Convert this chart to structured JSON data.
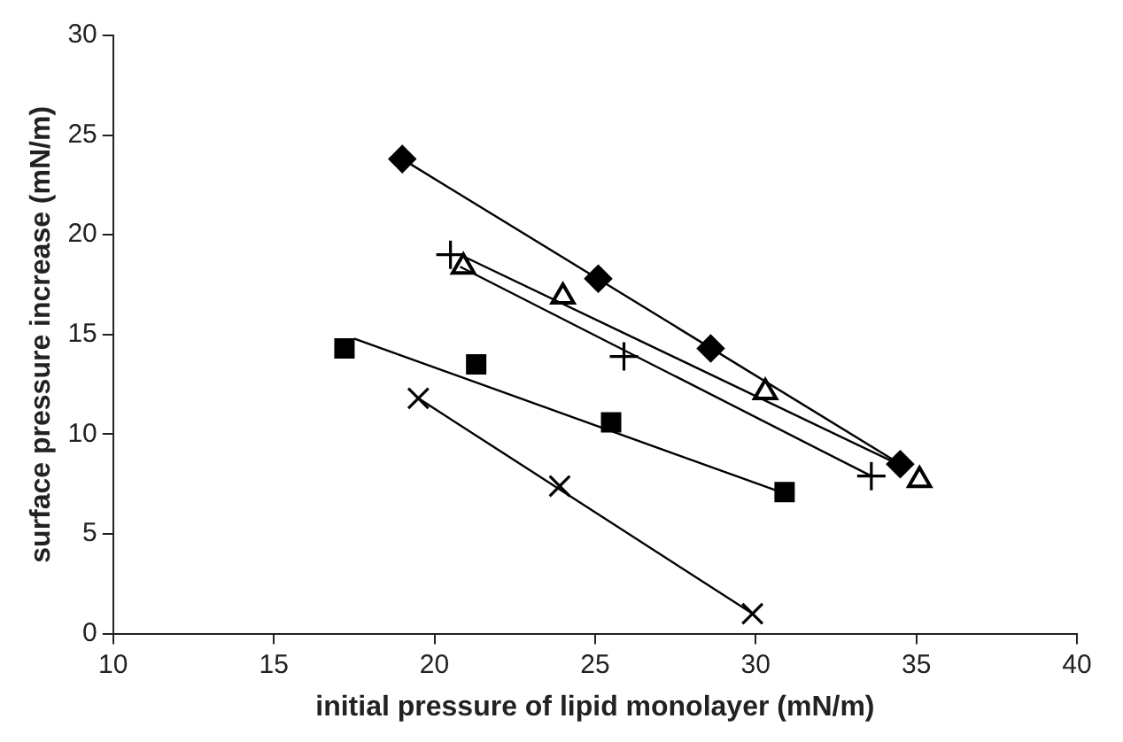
{
  "chart_data": {
    "type": "scatter",
    "xlabel": "initial pressure of lipid monolayer (mN/m)",
    "ylabel": "surface pressure increase (mN/m)",
    "xlim": [
      10,
      40
    ],
    "xticks": [
      10,
      15,
      20,
      25,
      30,
      35,
      40
    ],
    "ylim": [
      0,
      30
    ],
    "yticks": [
      0,
      5,
      10,
      15,
      20,
      25,
      30
    ],
    "grid": false,
    "legend": false,
    "series": [
      {
        "marker": "diamond",
        "color": "#000000",
        "x": [
          19.0,
          25.1,
          28.6,
          34.5
        ],
        "values": [
          23.8,
          17.8,
          14.3,
          8.5
        ]
      },
      {
        "marker": "triangle",
        "color": "#000000",
        "x": [
          20.9,
          24.0,
          30.3,
          35.1
        ],
        "values": [
          18.4,
          16.9,
          12.1,
          7.7
        ]
      },
      {
        "marker": "plus",
        "color": "#000000",
        "x": [
          20.5,
          25.9,
          33.6
        ],
        "values": [
          19.0,
          13.9,
          7.9
        ]
      },
      {
        "marker": "square",
        "color": "#000000",
        "x": [
          17.2,
          21.3,
          25.5,
          30.9
        ],
        "values": [
          14.3,
          13.5,
          10.6,
          7.1
        ]
      },
      {
        "marker": "cross",
        "color": "#000000",
        "x": [
          19.5,
          23.9,
          29.9
        ],
        "values": [
          11.8,
          7.4,
          1.0
        ]
      },
      {
        "type": "line",
        "marker": "none",
        "color": "#000000",
        "x": [
          19.0,
          34.5
        ],
        "values": [
          23.8,
          8.5
        ]
      },
      {
        "type": "line",
        "marker": "none",
        "color": "#000000",
        "x": [
          20.8,
          34.3
        ],
        "values": [
          19.0,
          8.6
        ]
      },
      {
        "type": "line",
        "marker": "none",
        "color": "#000000",
        "x": [
          20.8,
          33.6
        ],
        "values": [
          18.4,
          7.9
        ]
      },
      {
        "type": "line",
        "marker": "none",
        "color": "#000000",
        "x": [
          17.5,
          30.6
        ],
        "values": [
          14.8,
          7.2
        ]
      },
      {
        "type": "line",
        "marker": "none",
        "color": "#000000",
        "x": [
          19.5,
          29.9
        ],
        "values": [
          11.8,
          1.0
        ]
      }
    ]
  }
}
